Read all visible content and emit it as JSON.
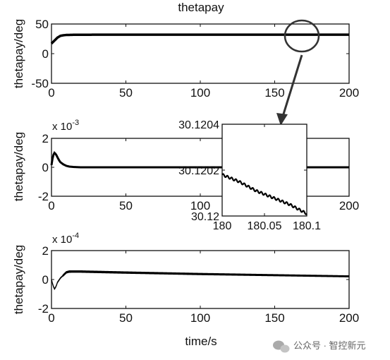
{
  "chart_data": [
    {
      "type": "line",
      "title": "thetapay",
      "xlabel": "",
      "ylabel": "thetapay/deg",
      "xlim": [
        0,
        200
      ],
      "ylim": [
        -50,
        50
      ],
      "xticks": [
        "0",
        "50",
        "100",
        "150",
        "200"
      ],
      "yticks": [
        "50",
        "0",
        "-50"
      ],
      "exponent": "",
      "series": [
        {
          "x": [
            0,
            2,
            4,
            6,
            8,
            10,
            15,
            20,
            50,
            100,
            150,
            200
          ],
          "y": [
            17,
            22,
            27,
            30,
            31,
            31.5,
            31.8,
            31.9,
            32,
            32,
            32,
            32
          ]
        }
      ],
      "annotation": "circle at t≈170 with arrow pointing to zoomed inset"
    },
    {
      "type": "line",
      "title": "",
      "xlabel": "",
      "ylabel": "thetapay/deg",
      "xlim": [
        0,
        200
      ],
      "ylim": [
        -2,
        2
      ],
      "xticks": [
        "0",
        "50",
        "100",
        "150",
        "200"
      ],
      "yticks": [
        "2",
        "0",
        "-2"
      ],
      "exponent": "x 10-3",
      "series": [
        {
          "x": [
            0,
            1,
            2,
            3,
            4,
            5,
            6,
            8,
            10,
            12,
            15,
            20,
            200
          ],
          "y": [
            0.15,
            0.8,
            1.0,
            0.9,
            0.7,
            0.5,
            0.35,
            0.2,
            0.1,
            0.05,
            0.02,
            0.0,
            0.0
          ]
        }
      ]
    },
    {
      "type": "line",
      "title": "",
      "xlabel": "",
      "ylabel": "",
      "xlim": [
        180,
        180.1
      ],
      "ylim": [
        30.12,
        30.1204
      ],
      "xticks": [
        "180",
        "180.05",
        "180.1"
      ],
      "yticks": [
        "30.1204",
        "30.1202",
        "30.12"
      ],
      "series": [
        {
          "x": [
            180,
            180.02,
            180.04,
            180.06,
            180.08,
            180.1
          ],
          "y": [
            30.12018,
            30.12015,
            30.12011,
            30.12008,
            30.12005,
            30.12001
          ]
        }
      ],
      "oscillation_amplitude": 5e-06,
      "oscillation_cycles": 20
    },
    {
      "type": "line",
      "title": "",
      "xlabel": "time/s",
      "ylabel": "thetapay/deg",
      "xlim": [
        0,
        200
      ],
      "ylim": [
        -2,
        2
      ],
      "xticks": [
        "0",
        "50",
        "100",
        "150",
        "200"
      ],
      "yticks": [
        "2",
        "0",
        "-2"
      ],
      "exponent": "x 10-4",
      "series": [
        {
          "x": [
            0,
            1,
            2,
            3,
            4,
            6,
            8,
            10,
            12,
            20,
            50,
            100,
            150,
            200
          ],
          "y": [
            0.0,
            -0.4,
            -0.65,
            -0.5,
            -0.2,
            0.1,
            0.3,
            0.5,
            0.55,
            0.55,
            0.48,
            0.38,
            0.3,
            0.22
          ]
        }
      ],
      "band_width": 0.12
    }
  ],
  "watermark": "公众号 · 智控新元",
  "watermark_icon": "wechat-icon"
}
